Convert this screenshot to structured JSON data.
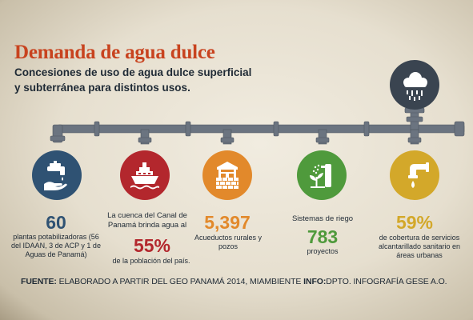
{
  "title": "Demanda de agua dulce",
  "subtitle": "Concesiones de uso de agua dulce superficial y subterránea para distintos usos.",
  "colors": {
    "title": "#c8431f",
    "pipe": "#6b7480",
    "blue": "#2f5273",
    "red": "#b3272d",
    "orange": "#e2892b",
    "green": "#4f9a3c",
    "yellow": "#d3a82a",
    "dark": "#1f2a35"
  },
  "items": [
    {
      "icon": "faucet-hand-icon",
      "value": "60",
      "desc": "plantas potabilizadoras (56 del IDAAN, 3 de ACP y 1 de Aguas de Panamá)"
    },
    {
      "icon": "ship-icon",
      "pre": "La cuenca del Canal de Panamá brinda agua al",
      "value": "55%",
      "desc": "de la población del país."
    },
    {
      "icon": "well-icon",
      "value": "5,397",
      "desc": "Acueductos rurales y pozos"
    },
    {
      "icon": "irrigation-plant-icon",
      "pre": "Sistemas de riego",
      "value": "783",
      "desc": "proyectos"
    },
    {
      "icon": "sewer-pipe-icon",
      "value": "59%",
      "desc": "de cobertura de servicios alcantarillado sanitario en áreas urbanas"
    }
  ],
  "top_icon": "rain-cloud-icon",
  "footer": {
    "source_label": "FUENTE:",
    "source_text": "ELABORADO A PARTIR DEL GEO PANAMÁ 2014, MIAMBIENTE",
    "info_label": "INFO:",
    "info_text": "DPTO. INFOGRAFÍA GESE A.O."
  }
}
